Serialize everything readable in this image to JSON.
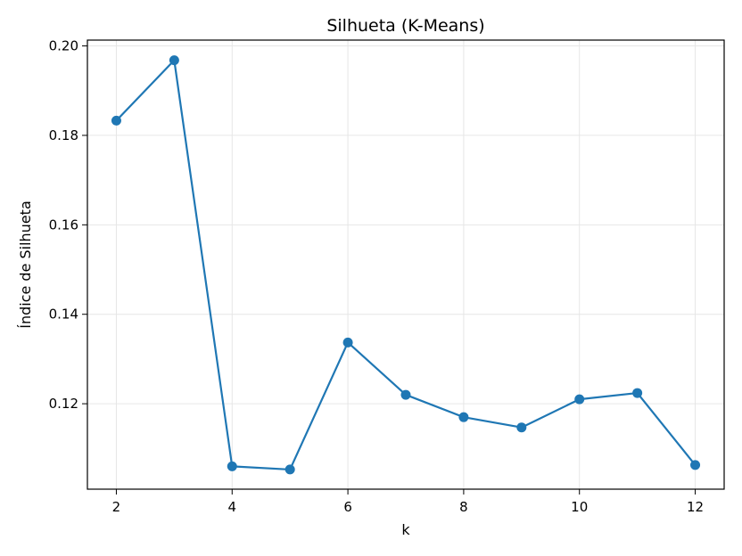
{
  "chart_data": {
    "type": "line",
    "title": "Silhueta (K-Means)",
    "xlabel": "k",
    "ylabel": "Índice de Silhueta",
    "x": [
      2,
      3,
      4,
      5,
      6,
      7,
      8,
      9,
      10,
      11,
      12
    ],
    "series": [
      {
        "values": [
          0.1833,
          0.1968,
          0.106,
          0.1053,
          0.1337,
          0.122,
          0.117,
          0.1147,
          0.121,
          0.1224,
          0.1063
        ]
      }
    ],
    "xticks": [
      "2",
      "4",
      "6",
      "8",
      "10",
      "12"
    ],
    "yticks": [
      "0.12",
      "0.14",
      "0.16",
      "0.18",
      "0.20"
    ],
    "xlim": [
      1.5,
      12.5
    ],
    "ylim": [
      0.1009,
      0.2013
    ],
    "grid": true,
    "line_color": "#1f77b4",
    "grid_color": "#e6e6e6"
  }
}
